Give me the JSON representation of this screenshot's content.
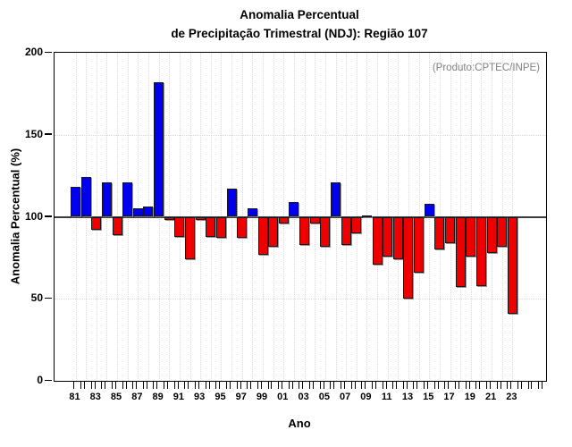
{
  "title": {
    "line1": "Anomalia Percentual",
    "line2": "de Precipitação Trimestral (NDJ): Região 107"
  },
  "annotation": "(Produto:CPTEC/INPE)",
  "chart_data": {
    "type": "bar",
    "title": "Anomalia Percentual de Precipitação Trimestral (NDJ): Região 107",
    "xlabel": "Ano",
    "ylabel": "Anomalia Percentual (%)",
    "ylim": [
      0,
      200
    ],
    "yticks": [
      0,
      50,
      100,
      150,
      200
    ],
    "baseline": 100,
    "grid": "dotted",
    "legend": "none",
    "colors": {
      "above_baseline": "#0000ee",
      "below_baseline": "#ee0000",
      "annotation": "#828282"
    },
    "categories": [
      "81",
      "82",
      "83",
      "84",
      "85",
      "86",
      "87",
      "88",
      "89",
      "90",
      "91",
      "92",
      "93",
      "94",
      "95",
      "96",
      "97",
      "98",
      "99",
      "00",
      "01",
      "02",
      "03",
      "04",
      "05",
      "06",
      "07",
      "08",
      "09",
      "10",
      "11",
      "12",
      "13",
      "14",
      "15",
      "16",
      "17",
      "18",
      "19",
      "20",
      "21",
      "22",
      "23"
    ],
    "values": [
      118,
      124,
      92,
      121,
      89,
      121,
      105,
      106,
      182,
      98,
      88,
      74,
      98,
      88,
      87,
      117,
      87,
      105,
      77,
      82,
      96,
      109,
      83,
      96,
      82,
      121,
      83,
      90,
      101,
      71,
      76,
      74,
      50,
      66,
      108,
      80,
      84,
      57,
      76,
      58,
      78,
      82,
      41
    ],
    "xtick_labels": [
      "81",
      "83",
      "85",
      "87",
      "89",
      "91",
      "93",
      "95",
      "97",
      "99",
      "01",
      "03",
      "05",
      "07",
      "09",
      "11",
      "13",
      "15",
      "17",
      "19",
      "21",
      "23"
    ]
  }
}
